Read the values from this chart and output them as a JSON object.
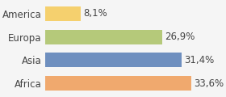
{
  "categories": [
    "America",
    "Europa",
    "Asia",
    "Africa"
  ],
  "values": [
    8.1,
    26.9,
    31.4,
    33.6
  ],
  "labels": [
    "8,1%",
    "26,9%",
    "31,4%",
    "33,6%"
  ],
  "bar_colors": [
    "#f5d06e",
    "#b5c97a",
    "#6e8fbf",
    "#f0a96e"
  ],
  "background_color": "#f5f5f5",
  "xlim": [
    0,
    40
  ],
  "bar_height": 0.62,
  "label_fontsize": 8.5,
  "tick_fontsize": 8.5
}
